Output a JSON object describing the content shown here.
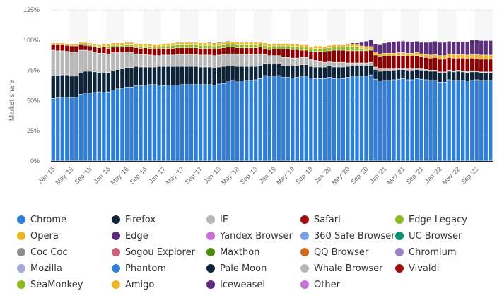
{
  "chart_data": {
    "type": "bar",
    "stacked": true,
    "title": "",
    "xlabel": "",
    "ylabel": "Market share",
    "ylim": [
      0,
      125
    ],
    "yticks": [
      "0%",
      "25%",
      "50%",
      "75%",
      "100%",
      "125%"
    ],
    "ytick_values": [
      0,
      25,
      50,
      75,
      100,
      125
    ],
    "grid": true,
    "legend_position": "bottom",
    "xtick_labels": [
      "Jan '15",
      "May '15",
      "Sep '15",
      "Jan '16",
      "May '16",
      "Sep '16",
      "Jan '17",
      "May '17",
      "Sep '17",
      "Jan '18",
      "May '18",
      "Sep '18",
      "Jan '19",
      "May '19",
      "Sep '19",
      "Jan '20",
      "May '20",
      "Sep '20",
      "Jan '21",
      "May '21",
      "Sep '21",
      "Jan '22",
      "May '22",
      "Sep '22"
    ],
    "categories": [
      "Jan '15",
      "Feb '15",
      "Mar '15",
      "Apr '15",
      "May '15",
      "Jun '15",
      "Jul '15",
      "Aug '15",
      "Sep '15",
      "Oct '15",
      "Nov '15",
      "Dec '15",
      "Jan '16",
      "Feb '16",
      "Mar '16",
      "Apr '16",
      "May '16",
      "Jun '16",
      "Jul '16",
      "Aug '16",
      "Sep '16",
      "Oct '16",
      "Nov '16",
      "Dec '16",
      "Jan '17",
      "Feb '17",
      "Mar '17",
      "Apr '17",
      "May '17",
      "Jun '17",
      "Jul '17",
      "Aug '17",
      "Sep '17",
      "Oct '17",
      "Nov '17",
      "Dec '17",
      "Jan '18",
      "Feb '18",
      "Mar '18",
      "Apr '18",
      "May '18",
      "Jun '18",
      "Jul '18",
      "Aug '18",
      "Sep '18",
      "Oct '18",
      "Nov '18",
      "Dec '18",
      "Jan '19",
      "Feb '19",
      "Mar '19",
      "Apr '19",
      "May '19",
      "Jun '19",
      "Jul '19",
      "Aug '19",
      "Sep '19",
      "Oct '19",
      "Nov '19",
      "Dec '19",
      "Jan '20",
      "Feb '20",
      "Mar '20",
      "Apr '20",
      "May '20",
      "Jun '20",
      "Jul '20",
      "Aug '20",
      "Sep '20",
      "Oct '20",
      "Nov '20",
      "Dec '20",
      "Jan '21",
      "Feb '21",
      "Mar '21",
      "Apr '21",
      "May '21",
      "Jun '21",
      "Jul '21",
      "Aug '21",
      "Sep '21",
      "Oct '21",
      "Nov '21",
      "Dec '21",
      "Jan '22",
      "Feb '22",
      "Mar '22",
      "Apr '22",
      "May '22",
      "Jun '22",
      "Jul '22",
      "Aug '22",
      "Sep '22",
      "Oct '22",
      "Nov '22",
      "Dec '22"
    ],
    "series": [
      {
        "name": "Chrome",
        "color": "#2f7ed8",
        "values": [
          51.5,
          52,
          52.5,
          52.5,
          52,
          52.5,
          55,
          56,
          56,
          56.5,
          57,
          56.5,
          57,
          58.5,
          59.5,
          60,
          61,
          61,
          62,
          62,
          62.5,
          63,
          63,
          62.5,
          62,
          62.5,
          62.5,
          62.5,
          63,
          63,
          63,
          63,
          63,
          63,
          63,
          62.5,
          63.5,
          64,
          66,
          66.5,
          66,
          66,
          66.5,
          66.5,
          67,
          68,
          70.5,
          70,
          70,
          70.5,
          69,
          69,
          68.5,
          69,
          70,
          70,
          68.5,
          68,
          68,
          68,
          69,
          68,
          68.5,
          68,
          69,
          70,
          70,
          70,
          70,
          71,
          67.5,
          66,
          66.5,
          66.5,
          67,
          67.5,
          68,
          67,
          67,
          68,
          67.5,
          67,
          66.5,
          66.5,
          65,
          65,
          67,
          66.5,
          66.5,
          66.5,
          66,
          66.5,
          67,
          66.5,
          66.5,
          66.5
        ]
      },
      {
        "name": "Firefox",
        "color": "#0d233a",
        "values": [
          19,
          18.5,
          18.5,
          18.5,
          18,
          17.5,
          17.5,
          18,
          18,
          17,
          16,
          16,
          16,
          16,
          16,
          16,
          16,
          16,
          16,
          15.5,
          15,
          14.5,
          14.5,
          15.5,
          16,
          15.5,
          15.5,
          15.5,
          15,
          15,
          15,
          15,
          14.5,
          14.5,
          14.5,
          14,
          14,
          14,
          12.5,
          12,
          12,
          12,
          11.5,
          11.5,
          11,
          10.5,
          10,
          10,
          10,
          9.5,
          10,
          10,
          10,
          9.5,
          9.5,
          9.5,
          9.5,
          9.5,
          9.5,
          9.5,
          9.5,
          9.5,
          9,
          9.5,
          9,
          8.5,
          8.5,
          8.5,
          8.5,
          8,
          8,
          8,
          8,
          8,
          8,
          8,
          7.5,
          8,
          8,
          7.5,
          7.5,
          7.5,
          7.5,
          7.5,
          7.5,
          7.5,
          7,
          7,
          7.5,
          7,
          7,
          7,
          6.5,
          6.5,
          6.5,
          6.5
        ]
      },
      {
        "name": "IE",
        "color": "#b8b8b8",
        "values": [
          21,
          20.5,
          20,
          19.5,
          20,
          20,
          19,
          17.5,
          17,
          16.5,
          16,
          16.5,
          15.5,
          15,
          14,
          13.5,
          13,
          12.5,
          10.5,
          10.5,
          10.5,
          10,
          9.5,
          9,
          9.5,
          9.5,
          9.5,
          10,
          10,
          10,
          10,
          10,
          10,
          10,
          10,
          10.5,
          10,
          10,
          10,
          10,
          10,
          10,
          10,
          10,
          10,
          10,
          7.5,
          7,
          7,
          7,
          6.5,
          6.5,
          6.5,
          6.5,
          6,
          6,
          6,
          5.5,
          4.5,
          4,
          4,
          4,
          4,
          4,
          3,
          2.5,
          2.5,
          2.5,
          2.5,
          2.5,
          2,
          2,
          1.5,
          1.5,
          1,
          1,
          1,
          1,
          1,
          1,
          1,
          1,
          1,
          1,
          1,
          1,
          1,
          1,
          1,
          1,
          1,
          1,
          0.5,
          0.5,
          0.5,
          0.5
        ]
      },
      {
        "name": "Safari",
        "color": "#8f0000",
        "values": [
          4.5,
          5,
          5,
          5,
          5,
          5,
          4.5,
          4,
          4,
          4,
          4.5,
          5,
          4.5,
          4.5,
          4.5,
          4.5,
          4.5,
          5,
          5,
          5,
          5.5,
          5.5,
          5.5,
          5.5,
          5.5,
          5.5,
          5.5,
          5.5,
          5.5,
          5.5,
          5.5,
          5.5,
          5.5,
          5.5,
          5.5,
          5.5,
          5.5,
          5.5,
          5.5,
          5.5,
          5.5,
          5.5,
          5.5,
          5.5,
          5.5,
          5.5,
          5,
          5,
          5.5,
          5.5,
          7,
          7,
          7,
          7,
          6,
          6,
          6,
          7.5,
          8.5,
          8.5,
          8.5,
          10,
          10,
          10,
          10,
          10,
          10,
          10,
          10,
          10,
          10,
          10,
          10.5,
          10.5,
          10.5,
          10.5,
          10.5,
          10.5,
          10.5,
          10.5,
          10,
          10,
          10,
          10.5,
          10.5,
          10.5,
          10.5,
          10.5,
          10,
          10.5,
          10.5,
          10.5,
          10.5,
          10.5,
          10.5,
          10.5
        ]
      },
      {
        "name": "Edge Legacy",
        "color": "#8bbc21",
        "values": [
          0,
          0,
          0,
          0,
          0,
          0,
          0.5,
          1,
          1,
          1,
          1,
          1,
          1.5,
          1.5,
          1.5,
          1.5,
          1.5,
          1.5,
          1.5,
          1.5,
          1.5,
          1.5,
          1.5,
          1.5,
          2,
          2,
          2.5,
          2.5,
          2.5,
          2.5,
          2.5,
          2.5,
          2.5,
          2.5,
          2.5,
          2.5,
          2.5,
          2.5,
          2.5,
          2.5,
          2.5,
          2.5,
          2.5,
          2.5,
          2.5,
          2.5,
          2.5,
          2.5,
          2.5,
          2.5,
          2.5,
          2.5,
          2.5,
          2.5,
          2.5,
          2.5,
          2.5,
          2.5,
          2.5,
          2.5,
          2.5,
          2.5,
          2.5,
          2.5,
          3.5,
          3.5,
          3.5,
          2,
          1,
          0.5,
          0,
          0,
          0,
          0,
          0,
          0,
          0,
          0,
          0,
          0,
          0,
          0,
          0,
          0,
          0,
          0,
          0,
          0,
          0,
          0,
          0,
          0,
          0,
          0,
          0,
          0
        ]
      },
      {
        "name": "Opera",
        "color": "#f0b428",
        "values": [
          1.5,
          1.5,
          1.5,
          1.5,
          1.5,
          1.5,
          1.5,
          1.5,
          1.5,
          1.5,
          1.5,
          2,
          2,
          2,
          2,
          2,
          2,
          2,
          2,
          2,
          2,
          2,
          2,
          2,
          2,
          2,
          2,
          2,
          2,
          2,
          2,
          2,
          2,
          2,
          2,
          2,
          2,
          2,
          2,
          2,
          2,
          2,
          2,
          2,
          2,
          2,
          2,
          2,
          2,
          2,
          2,
          2,
          2,
          2,
          2,
          2,
          2,
          2,
          2,
          2,
          2,
          2,
          2,
          2,
          2,
          2,
          2,
          2,
          2.5,
          2.5,
          2.5,
          2.5,
          2.5,
          2.5,
          2.5,
          2.5,
          2.5,
          2.5,
          2.5,
          2.5,
          2.5,
          2.5,
          2.5,
          2.5,
          3,
          3,
          3,
          3,
          3,
          3,
          3,
          3,
          3.5,
          3.5,
          3.5,
          3.5
        ]
      },
      {
        "name": "Edge",
        "color": "#5c2c7d",
        "values": [
          0,
          0,
          0,
          0,
          0,
          0,
          0,
          0,
          0,
          0,
          0,
          0,
          0,
          0,
          0,
          0,
          0,
          0,
          0,
          0,
          0,
          0,
          0,
          0,
          0,
          0,
          0,
          0,
          0,
          0,
          0,
          0,
          0,
          0,
          0,
          0,
          0,
          0,
          0,
          0,
          0,
          0,
          0,
          0,
          0,
          0,
          0,
          0,
          0,
          0,
          0,
          0,
          0,
          0,
          0,
          0,
          0,
          0,
          0,
          0,
          0,
          0,
          0,
          0,
          0.5,
          1,
          1,
          3,
          4.5,
          5.5,
          6.5,
          7.5,
          8.5,
          9,
          9.5,
          9.5,
          9.5,
          9.5,
          9.5,
          9.5,
          9.5,
          10,
          10.5,
          11,
          11,
          11,
          10.5,
          10.5,
          10.5,
          10.5,
          11,
          12,
          12,
          12,
          12,
          12
        ]
      },
      {
        "name": "UC Browser",
        "color": "#0d9073",
        "values": [
          0,
          0,
          0,
          0,
          0,
          0,
          0,
          0,
          0,
          0,
          0,
          0,
          0,
          0,
          0,
          0,
          0,
          0,
          0,
          0,
          0,
          0,
          0,
          0,
          0,
          0,
          0,
          0,
          0,
          0,
          0,
          0,
          0,
          0,
          0.5,
          0.5,
          0.5,
          0.5,
          0.5,
          0,
          0.5,
          0,
          0,
          0.5,
          0.5,
          0,
          0,
          0,
          0,
          0,
          0,
          0,
          0,
          0,
          0,
          0,
          0,
          0,
          0,
          0,
          0,
          0,
          0,
          0,
          0,
          0,
          0,
          0,
          0,
          0,
          0,
          0,
          0,
          0,
          0,
          0,
          0,
          0,
          0,
          0,
          0,
          0,
          0,
          0,
          0,
          0,
          0,
          0,
          0,
          0,
          0,
          0,
          0,
          0,
          0,
          0
        ]
      },
      {
        "name": "360 Safe Browser",
        "color": "#77a1e5",
        "values": [
          0,
          0,
          0,
          0,
          0,
          0,
          0,
          0,
          0,
          0,
          0,
          0,
          0,
          0,
          0,
          0,
          0,
          0,
          0,
          0,
          0,
          0,
          0,
          0,
          0,
          0,
          0,
          0,
          0,
          0,
          0,
          0,
          0,
          0,
          0,
          0,
          0,
          0,
          0,
          0,
          0,
          0,
          0,
          0,
          0,
          0,
          0,
          0,
          0,
          0,
          0,
          0,
          0,
          0,
          0,
          0,
          0,
          0,
          0,
          0,
          0,
          0,
          0,
          0,
          0,
          0,
          0,
          0,
          0,
          0.5,
          0,
          0,
          0,
          0,
          0,
          0,
          0.5,
          0.5,
          0,
          0,
          0,
          0,
          0,
          0,
          0,
          0,
          0,
          0,
          0,
          0,
          0,
          0,
          0,
          0,
          0,
          0
        ]
      }
    ]
  },
  "legend": {
    "items": [
      {
        "label": "Chrome",
        "color": "#2f7ed8"
      },
      {
        "label": "Firefox",
        "color": "#0d233a"
      },
      {
        "label": "IE",
        "color": "#b8b8b8"
      },
      {
        "label": "Safari",
        "color": "#a00e0e"
      },
      {
        "label": "Edge Legacy",
        "color": "#8bbc21"
      },
      {
        "label": "Opera",
        "color": "#f0b428"
      },
      {
        "label": "Edge",
        "color": "#5c2c7d"
      },
      {
        "label": "Yandex Browser",
        "color": "#c572d4"
      },
      {
        "label": "360 Safe Browser",
        "color": "#77a1e5"
      },
      {
        "label": "UC Browser",
        "color": "#0d9073"
      },
      {
        "label": "Coc Coc",
        "color": "#8e8e8e"
      },
      {
        "label": "Sogou Explorer",
        "color": "#c9607b"
      },
      {
        "label": "Maxthon",
        "color": "#4b8a0d"
      },
      {
        "label": "QQ Browser",
        "color": "#d06a14"
      },
      {
        "label": "Chromium",
        "color": "#9b82c1"
      },
      {
        "label": "Mozilla",
        "color": "#a8a8d8"
      },
      {
        "label": "Phantom",
        "color": "#2f7ed8"
      },
      {
        "label": "Pale Moon",
        "color": "#0d233a"
      },
      {
        "label": "Whale Browser",
        "color": "#b8b8b8"
      },
      {
        "label": "Vivaldi",
        "color": "#a00e0e"
      },
      {
        "label": "SeaMonkey",
        "color": "#8bbc21"
      },
      {
        "label": "Amigo",
        "color": "#f0b428"
      },
      {
        "label": "Iceweasel",
        "color": "#5c2c7d"
      },
      {
        "label": "Other",
        "color": "#c572d4"
      }
    ]
  }
}
